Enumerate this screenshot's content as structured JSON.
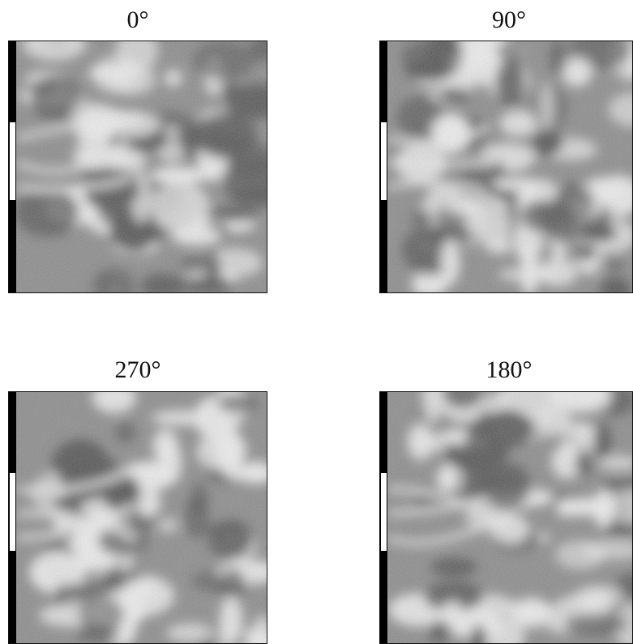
{
  "figure": {
    "panels": [
      {
        "id": "p0",
        "label": "0°",
        "seed": 11
      },
      {
        "id": "p90",
        "label": "90°",
        "seed": 23
      },
      {
        "id": "p270",
        "label": "270°",
        "seed": 37
      },
      {
        "id": "p180",
        "label": "180°",
        "seed": 51
      }
    ],
    "colors": {
      "dark": "#555555",
      "mid": "#8c8c8c",
      "light": "#ededed",
      "border": "#111111"
    }
  }
}
